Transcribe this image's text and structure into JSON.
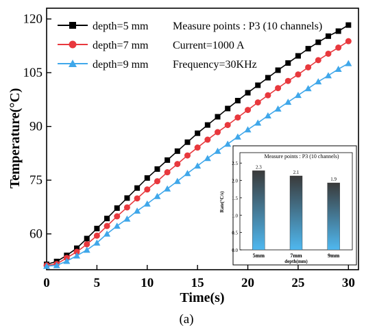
{
  "chart_data": [
    {
      "type": "line",
      "xlabel": "Time(s)",
      "ylabel": "Temperature(°C)",
      "xlim": [
        0,
        31
      ],
      "ylim": [
        50,
        123
      ],
      "xticks": [
        0,
        5,
        10,
        15,
        20,
        25,
        30
      ],
      "yticks": [
        60,
        75,
        90,
        105,
        120
      ],
      "xtick_labels": [
        "0",
        "5",
        "10",
        "15",
        "20",
        "25",
        "30"
      ],
      "ytick_labels": [
        "60",
        "75",
        "90",
        "105",
        "120"
      ],
      "grid": false,
      "legend_position": "top-left",
      "x": [
        0,
        1,
        2,
        3,
        4,
        5,
        6,
        7,
        8,
        9,
        10,
        11,
        12,
        13,
        14,
        15,
        16,
        17,
        18,
        19,
        20,
        21,
        22,
        23,
        24,
        25,
        26,
        27,
        28,
        29,
        30
      ],
      "series": [
        {
          "name": "depth=5 mm",
          "color": "#000000",
          "marker": "square",
          "values": [
            51.5,
            52.3,
            54.0,
            56.0,
            58.7,
            61.5,
            64.3,
            67.2,
            70.0,
            72.8,
            75.6,
            78.1,
            80.6,
            83.1,
            85.6,
            88.1,
            90.4,
            92.7,
            95.0,
            97.2,
            99.4,
            101.5,
            103.6,
            105.7,
            107.7,
            109.7,
            111.7,
            113.5,
            115.2,
            116.6,
            118.3
          ]
        },
        {
          "name": "depth=7 mm",
          "color": "#e8383d",
          "marker": "circle",
          "values": [
            51.2,
            51.6,
            53.3,
            55.0,
            57.1,
            59.5,
            62.2,
            64.9,
            67.4,
            69.9,
            72.4,
            74.7,
            77.2,
            79.5,
            81.9,
            84.1,
            86.3,
            88.4,
            90.4,
            92.5,
            94.6,
            96.7,
            98.7,
            100.7,
            102.7,
            104.5,
            106.5,
            108.5,
            110.3,
            112.0,
            113.8
          ]
        },
        {
          "name": "depth=9 mm",
          "color": "#3fa7ea",
          "marker": "triangle",
          "values": [
            51.0,
            51.2,
            52.4,
            53.9,
            55.5,
            57.5,
            60.0,
            62.2,
            64.2,
            66.4,
            68.4,
            70.5,
            72.6,
            74.7,
            76.9,
            79.0,
            81.1,
            83.1,
            85.1,
            87.1,
            89.1,
            91.0,
            93.0,
            94.9,
            96.8,
            98.7,
            100.6,
            102.5,
            104.2,
            106.0,
            107.6
          ]
        }
      ],
      "annotations": [
        "Measure points : P3 (10 channels)",
        "Current=1000 A",
        "Frequency=30KHz"
      ],
      "panel_label": "(a)"
    },
    {
      "type": "bar",
      "title": "Measure points : P3 (10 channels)",
      "categories": [
        "5mm",
        "7mm",
        "9mm"
      ],
      "values": [
        2.28,
        2.13,
        1.93
      ],
      "data_labels": [
        "2.3",
        "2.1",
        "1.9"
      ],
      "xlabel": "depth(mm)",
      "ylabel": "Rate(°C/s)",
      "ylim": [
        0,
        2.8
      ],
      "yticks": [
        0.0,
        0.5,
        1.0,
        1.5,
        2.0,
        2.5
      ],
      "ytick_labels": [
        "0.0",
        "0.5",
        "1.0",
        "1.5",
        "2.0",
        "2.5"
      ],
      "bar_gradient": [
        "#3a3a3a",
        "#4fb8f0"
      ]
    }
  ]
}
